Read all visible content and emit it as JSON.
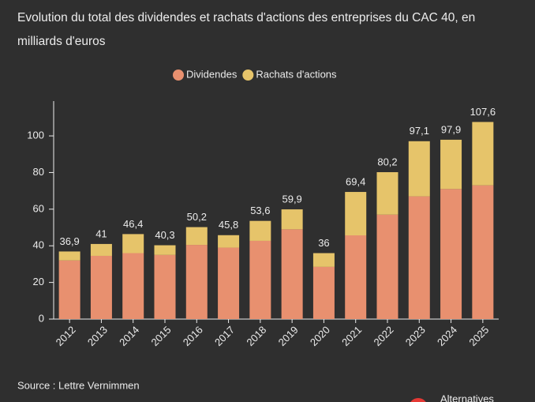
{
  "chart_data": {
    "type": "stacked-bar",
    "title": "Evolution du total des dividendes et rachats d'actions des entreprises du CAC 40, en milliards d'euros",
    "categories": [
      "2012",
      "2013",
      "2014",
      "2015",
      "2016",
      "2017",
      "2018",
      "2019",
      "2020",
      "2021",
      "2022",
      "2023",
      "2024",
      "2025"
    ],
    "series": [
      {
        "name": "Dividendes",
        "color": "#e8906f",
        "values": [
          32,
          34.5,
          36,
          35,
          40.5,
          39,
          42.7,
          49,
          28.5,
          45.7,
          57,
          67,
          71,
          73
        ]
      },
      {
        "name": "Rachats d'actions",
        "color": "#e6c46a",
        "values": [
          4.9,
          6.5,
          10.4,
          5.3,
          9.7,
          6.8,
          10.9,
          10.9,
          7.5,
          23.7,
          23.2,
          30.1,
          26.9,
          34.6
        ]
      }
    ],
    "totals": [
      36.9,
      41,
      46.4,
      40.3,
      50.2,
      45.8,
      53.6,
      59.9,
      36,
      69.4,
      80.2,
      97.1,
      97.9,
      107.6
    ],
    "total_labels": [
      "36,9",
      "41",
      "46,4",
      "40,3",
      "50,2",
      "45,8",
      "53,6",
      "59,9",
      "36",
      "69,4",
      "80,2",
      "97,1",
      "97,9",
      "107,6"
    ],
    "ylim": [
      0,
      119
    ],
    "yticks": [
      0,
      20,
      40,
      60,
      80,
      100
    ],
    "legend": "top",
    "source": "Source : Lettre Vernimmen",
    "brand": "Alternatives"
  }
}
